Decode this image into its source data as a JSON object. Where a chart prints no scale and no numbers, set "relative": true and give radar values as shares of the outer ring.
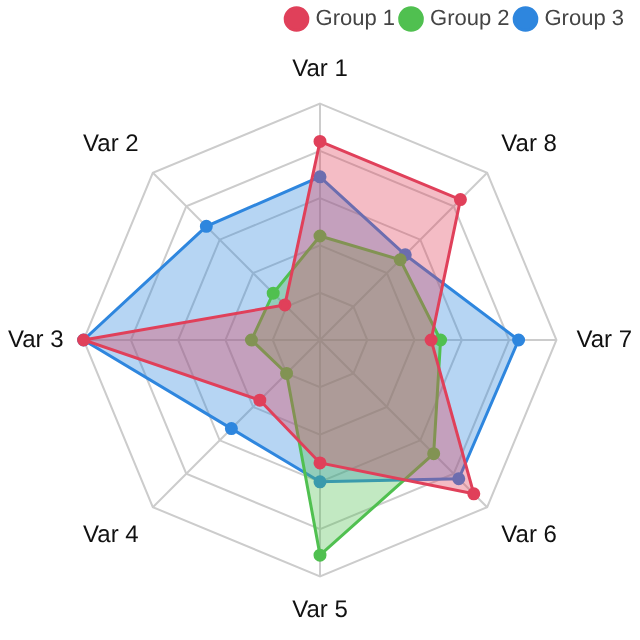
{
  "chart_data": {
    "type": "radar",
    "relative": true,
    "categories": [
      "Var 1",
      "Var 8",
      "Var 7",
      "Var 6",
      "Var 5",
      "Var 4",
      "Var 3",
      "Var 2"
    ],
    "series": [
      {
        "name": "Group 1",
        "color": "#e0405a",
        "values": [
          0.84,
          0.84,
          0.47,
          0.92,
          0.52,
          0.36,
          1.0,
          0.21
        ]
      },
      {
        "name": "Group 2",
        "color": "#50c050",
        "values": [
          0.44,
          0.48,
          0.51,
          0.68,
          0.91,
          0.2,
          0.29,
          0.28
        ]
      },
      {
        "name": "Group 3",
        "color": "#2e86de",
        "values": [
          0.69,
          0.51,
          0.84,
          0.83,
          0.6,
          0.53,
          1.0,
          0.68
        ]
      }
    ],
    "grid": true,
    "legend": "top right",
    "marker": "circle"
  }
}
